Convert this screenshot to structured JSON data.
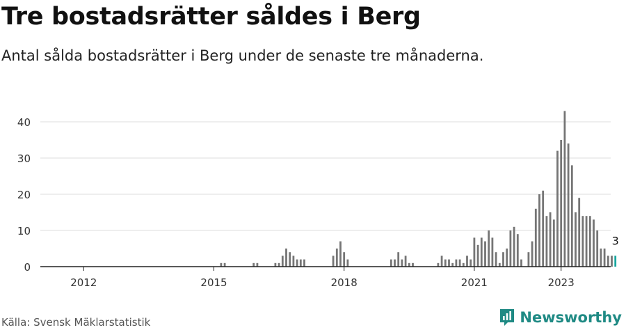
{
  "title": "Tre bostadsrätter såldes i Berg",
  "subtitle": "Antal sålda bostadsrätter i Berg under de senaste tre månaderna.",
  "source": "Källa: Svensk Mäklarstatistik",
  "brand": {
    "name": "Newsworthy",
    "icon": "newsworthy-logo-icon",
    "color": "#1f8a84"
  },
  "colors": {
    "bar": "#757575",
    "highlight": "#19a7a0",
    "grid": "#dddddd",
    "axis": "#222222"
  },
  "chart_data": {
    "type": "bar",
    "x_unit": "month",
    "x_start": "2011-01",
    "ylim": [
      0,
      45
    ],
    "yticks": [
      0,
      10,
      20,
      30,
      40
    ],
    "xtick_labels": [
      "2012",
      "2015",
      "2018",
      "2021",
      "2023"
    ],
    "grid": true,
    "highlight_label": "3",
    "values": [
      0,
      0,
      0,
      0,
      0,
      0,
      0,
      0,
      0,
      0,
      0,
      0,
      0,
      0,
      0,
      0,
      0,
      0,
      0,
      0,
      0,
      0,
      0,
      0,
      0,
      0,
      0,
      0,
      0,
      0,
      0,
      0,
      0,
      0,
      0,
      0,
      0,
      0,
      0,
      0,
      0,
      0,
      0,
      0,
      0,
      0,
      0,
      0,
      0,
      0,
      1,
      1,
      0,
      0,
      0,
      0,
      0,
      0,
      0,
      1,
      1,
      0,
      0,
      0,
      0,
      1,
      1,
      3,
      5,
      4,
      3,
      2,
      2,
      2,
      0,
      0,
      0,
      0,
      0,
      0,
      0,
      3,
      5,
      7,
      4,
      2,
      0,
      0,
      0,
      0,
      0,
      0,
      0,
      0,
      0,
      0,
      0,
      2,
      2,
      4,
      2,
      3,
      1,
      1,
      0,
      0,
      0,
      0,
      0,
      0,
      1,
      3,
      2,
      2,
      1,
      2,
      2,
      1,
      3,
      2,
      8,
      6,
      8,
      7,
      10,
      8,
      4,
      1,
      4,
      5,
      10,
      11,
      9,
      2,
      0,
      4,
      7,
      16,
      20,
      21,
      14,
      15,
      13,
      32,
      35,
      43,
      34,
      28,
      15,
      19,
      14,
      14,
      14,
      13,
      10,
      5,
      5,
      3,
      3,
      3
    ]
  }
}
